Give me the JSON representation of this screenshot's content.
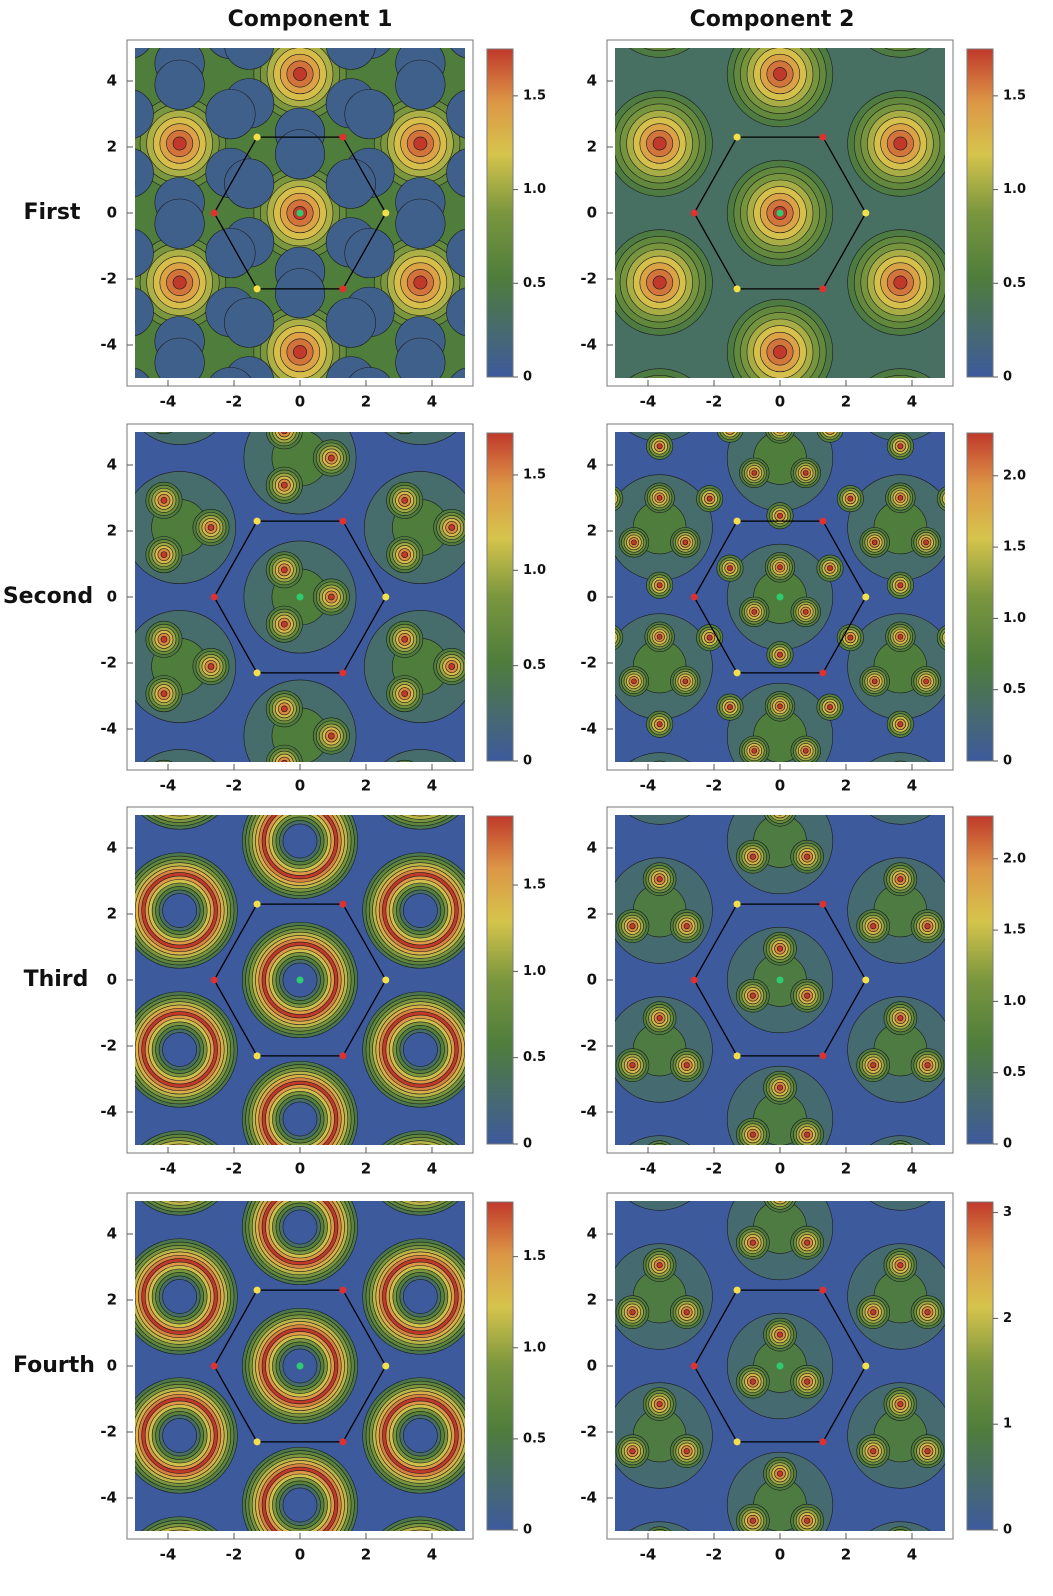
{
  "column_titles": [
    "Component 1",
    "Component 2"
  ],
  "row_labels": [
    "First",
    "Second",
    "Third",
    "Fourth"
  ],
  "chart_data": [
    {
      "type": "contour",
      "xlim": [
        -5,
        5
      ],
      "ylim": [
        -5,
        5
      ],
      "xticks": [
        -4,
        -2,
        0,
        2,
        4
      ],
      "yticks": [
        -4,
        -2,
        0,
        2,
        4
      ],
      "colorbar_lim": [
        0,
        1.75
      ],
      "colorbar_ticks": [
        0,
        0.5,
        {
          "value": 1,
          "label": "1.0"
        },
        1.5
      ],
      "points": {
        "x": [
          -1.3,
          1.3,
          2.6,
          1.3,
          -1.3,
          -2.6,
          0
        ],
        "y": [
          2.3,
          2.3,
          0,
          -2.3,
          -2.3,
          0,
          0
        ],
        "colors": [
          "#f5e04a",
          "#e03030",
          "#f5e04a",
          "#e03030",
          "#f5e04a",
          "#e03030",
          "#2ecc71"
        ]
      }
    },
    {
      "type": "contour",
      "xlim": [
        -5,
        5
      ],
      "ylim": [
        -5,
        5
      ],
      "xticks": [
        -4,
        -2,
        0,
        2,
        4
      ],
      "yticks": [
        -4,
        -2,
        0,
        2,
        4
      ],
      "colorbar_lim": [
        0,
        1.75
      ],
      "colorbar_ticks": [
        0,
        0.5,
        {
          "value": 1,
          "label": "1.0"
        },
        1.5
      ],
      "points": {
        "x": [
          -1.3,
          1.3,
          2.6,
          1.3,
          -1.3,
          -2.6,
          0
        ],
        "y": [
          2.3,
          2.3,
          0,
          -2.3,
          -2.3,
          0,
          0
        ],
        "colors": [
          "#f5e04a",
          "#e03030",
          "#f5e04a",
          "#e03030",
          "#f5e04a",
          "#e03030",
          "#2ecc71"
        ]
      }
    },
    {
      "type": "contour",
      "xlim": [
        -5,
        5
      ],
      "ylim": [
        -5,
        5
      ],
      "xticks": [
        -4,
        -2,
        0,
        2,
        4
      ],
      "yticks": [
        -4,
        -2,
        0,
        2,
        4
      ],
      "colorbar_lim": [
        0,
        1.72
      ],
      "colorbar_ticks": [
        0,
        0.5,
        {
          "value": 1,
          "label": "1.0"
        },
        1.5
      ],
      "points": {
        "x": [
          -1.3,
          1.3,
          2.6,
          1.3,
          -1.3,
          -2.6,
          0
        ],
        "y": [
          2.3,
          2.3,
          0,
          -2.3,
          -2.3,
          0,
          0
        ],
        "colors": [
          "#f5e04a",
          "#e03030",
          "#f5e04a",
          "#e03030",
          "#f5e04a",
          "#e03030",
          "#2ecc71"
        ]
      }
    },
    {
      "type": "contour",
      "xlim": [
        -5,
        5
      ],
      "ylim": [
        -5,
        5
      ],
      "xticks": [
        -4,
        -2,
        0,
        2,
        4
      ],
      "yticks": [
        -4,
        -2,
        0,
        2,
        4
      ],
      "colorbar_lim": [
        0,
        2.3
      ],
      "colorbar_ticks": [
        0,
        0.5,
        {
          "value": 1,
          "label": "1.0"
        },
        1.5,
        {
          "value": 2,
          "label": "2.0"
        }
      ],
      "points": {
        "x": [
          -1.3,
          1.3,
          2.6,
          1.3,
          -1.3,
          -2.6,
          0
        ],
        "y": [
          2.3,
          2.3,
          0,
          -2.3,
          -2.3,
          0,
          0
        ],
        "colors": [
          "#f5e04a",
          "#e03030",
          "#f5e04a",
          "#e03030",
          "#f5e04a",
          "#e03030",
          "#2ecc71"
        ]
      }
    },
    {
      "type": "contour",
      "xlim": [
        -5,
        5
      ],
      "ylim": [
        -5,
        5
      ],
      "xticks": [
        -4,
        -2,
        0,
        2,
        4
      ],
      "yticks": [
        -4,
        -2,
        0,
        2,
        4
      ],
      "colorbar_lim": [
        0,
        1.9
      ],
      "colorbar_ticks": [
        0,
        0.5,
        {
          "value": 1,
          "label": "1.0"
        },
        1.5
      ],
      "points": {
        "x": [
          -1.3,
          1.3,
          2.6,
          1.3,
          -1.3,
          -2.6,
          0
        ],
        "y": [
          2.3,
          2.3,
          0,
          -2.3,
          -2.3,
          0,
          0
        ],
        "colors": [
          "#f5e04a",
          "#e03030",
          "#f5e04a",
          "#e03030",
          "#f5e04a",
          "#e03030",
          "#2ecc71"
        ]
      }
    },
    {
      "type": "contour",
      "xlim": [
        -5,
        5
      ],
      "ylim": [
        -5,
        5
      ],
      "xticks": [
        -4,
        -2,
        0,
        2,
        4
      ],
      "yticks": [
        -4,
        -2,
        0,
        2,
        4
      ],
      "colorbar_lim": [
        0,
        2.3
      ],
      "colorbar_ticks": [
        0,
        0.5,
        {
          "value": 1,
          "label": "1.0"
        },
        1.5,
        {
          "value": 2,
          "label": "2.0"
        }
      ],
      "points": {
        "x": [
          -1.3,
          1.3,
          2.6,
          1.3,
          -1.3,
          -2.6,
          0
        ],
        "y": [
          2.3,
          2.3,
          0,
          -2.3,
          -2.3,
          0,
          0
        ],
        "colors": [
          "#f5e04a",
          "#e03030",
          "#f5e04a",
          "#e03030",
          "#f5e04a",
          "#e03030",
          "#2ecc71"
        ]
      }
    },
    {
      "type": "contour",
      "xlim": [
        -5,
        5
      ],
      "ylim": [
        -5,
        5
      ],
      "xticks": [
        -4,
        -2,
        0,
        2,
        4
      ],
      "yticks": [
        -4,
        -2,
        0,
        2,
        4
      ],
      "colorbar_lim": [
        0,
        1.8
      ],
      "colorbar_ticks": [
        0,
        0.5,
        {
          "value": 1,
          "label": "1.0"
        },
        1.5
      ],
      "points": {
        "x": [
          -1.3,
          1.3,
          2.6,
          1.3,
          -1.3,
          -2.6,
          0
        ],
        "y": [
          2.3,
          2.3,
          0,
          -2.3,
          -2.3,
          0,
          0
        ],
        "colors": [
          "#f5e04a",
          "#e03030",
          "#f5e04a",
          "#e03030",
          "#f5e04a",
          "#e03030",
          "#2ecc71"
        ]
      }
    },
    {
      "type": "contour",
      "xlim": [
        -5,
        5
      ],
      "ylim": [
        -5,
        5
      ],
      "xticks": [
        -4,
        -2,
        0,
        2,
        4
      ],
      "yticks": [
        -4,
        -2,
        0,
        2,
        4
      ],
      "colorbar_lim": [
        0,
        3.1
      ],
      "colorbar_ticks": [
        0,
        1,
        2,
        3
      ],
      "points": {
        "x": [
          -1.3,
          1.3,
          2.6,
          1.3,
          -1.3,
          -2.6,
          0
        ],
        "y": [
          2.3,
          2.3,
          0,
          -2.3,
          -2.3,
          0,
          0
        ],
        "colors": [
          "#f5e04a",
          "#e03030",
          "#f5e04a",
          "#e03030",
          "#f5e04a",
          "#e03030",
          "#2ecc71"
        ]
      }
    }
  ]
}
